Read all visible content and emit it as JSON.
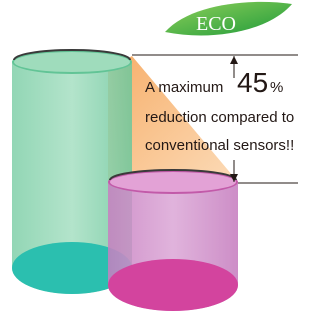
{
  "badge": {
    "label": "ECO"
  },
  "callout": {
    "prefix": "A maximum",
    "value": 45,
    "unit": "%",
    "lines": [
      "reduction compared to",
      "conventional sensors!!"
    ]
  }
}
